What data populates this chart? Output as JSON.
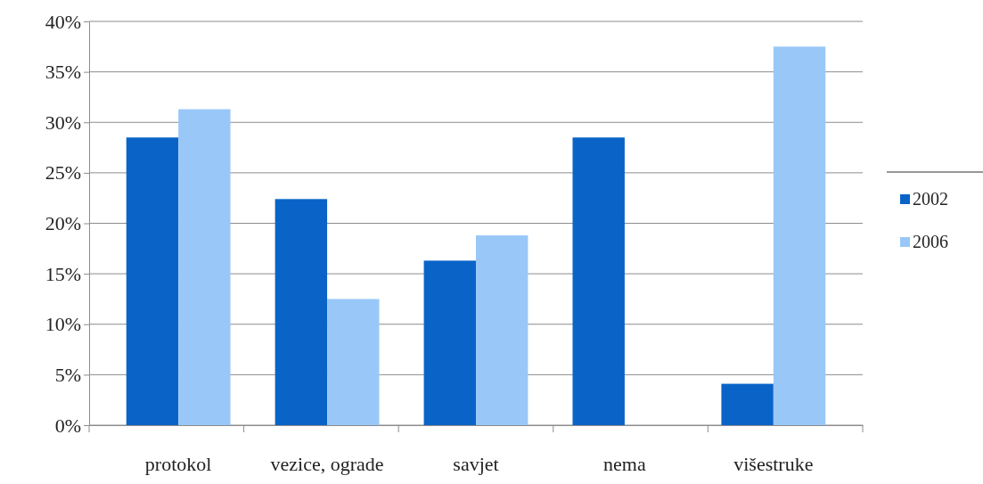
{
  "chart_data": {
    "type": "bar",
    "categories": [
      "protokol",
      "vezice, ograde",
      "savjet",
      "nema",
      "višestruke"
    ],
    "series": [
      {
        "name": "2002",
        "color": "#0a64c8",
        "values": [
          28.5,
          22.4,
          16.3,
          28.5,
          4.1
        ]
      },
      {
        "name": "2006",
        "color": "#99c8f8",
        "values": [
          31.3,
          12.5,
          18.8,
          0,
          37.5
        ]
      }
    ],
    "ylim": [
      0,
      40
    ],
    "yticks": [
      {
        "value": 0,
        "label": "0%"
      },
      {
        "value": 5,
        "label": "5%"
      },
      {
        "value": 10,
        "label": "10%"
      },
      {
        "value": 15,
        "label": "15%"
      },
      {
        "value": 20,
        "label": "20%"
      },
      {
        "value": 25,
        "label": "25%"
      },
      {
        "value": 30,
        "label": "30%"
      },
      {
        "value": 35,
        "label": "35%"
      },
      {
        "value": 40,
        "label": "40%"
      }
    ],
    "grid": "y",
    "legend": "right"
  }
}
